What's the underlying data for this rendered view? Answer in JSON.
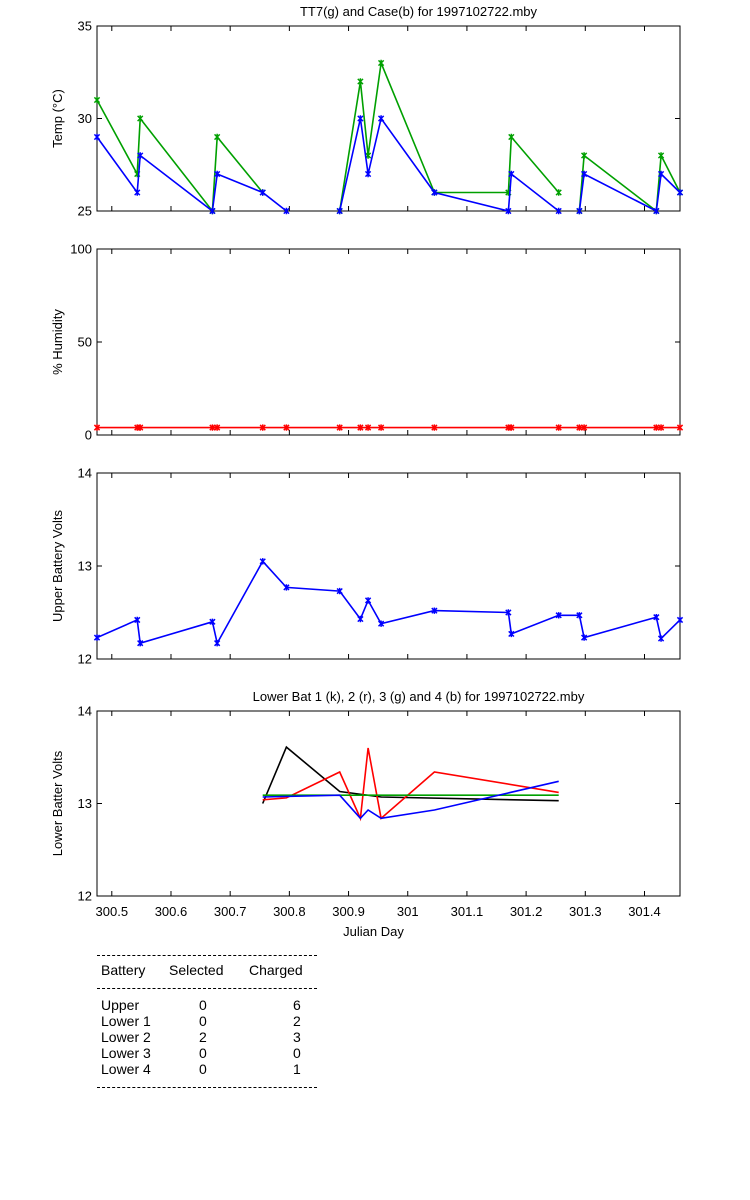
{
  "chart_data": [
    {
      "type": "line",
      "title": "TT7(g) and Case(b) for 1997102722.mby",
      "xlabel": "",
      "ylabel": "Temp  (°C)",
      "xlim": [
        300.475,
        301.46
      ],
      "ylim": [
        25,
        35
      ],
      "yticks": [
        25,
        30,
        35
      ],
      "series": [
        {
          "name": "TT7",
          "color": "#00a000",
          "segments": [
            [
              [
                300.475,
                31
              ],
              [
                300.543,
                27
              ],
              [
                300.548,
                30
              ],
              [
                300.67,
                25
              ],
              [
                300.678,
                29
              ],
              [
                300.755,
                26
              ]
            ],
            [
              [
                300.885,
                25
              ],
              [
                300.92,
                32
              ],
              [
                300.933,
                28
              ],
              [
                300.955,
                33
              ],
              [
                301.045,
                26
              ],
              [
                301.17,
                26
              ],
              [
                301.175,
                29
              ],
              [
                301.255,
                26
              ]
            ],
            [
              [
                301.29,
                25
              ],
              [
                301.298,
                28
              ],
              [
                301.42,
                25
              ],
              [
                301.428,
                28
              ],
              [
                301.46,
                26
              ]
            ]
          ]
        },
        {
          "name": "Case",
          "color": "#0000ff",
          "segments": [
            [
              [
                300.475,
                29
              ],
              [
                300.543,
                26
              ],
              [
                300.548,
                28
              ],
              [
                300.67,
                25
              ],
              [
                300.678,
                27
              ],
              [
                300.755,
                26
              ],
              [
                300.795,
                25
              ]
            ],
            [
              [
                300.885,
                25
              ],
              [
                300.92,
                30
              ],
              [
                300.933,
                27
              ],
              [
                300.955,
                30
              ],
              [
                301.045,
                26
              ],
              [
                301.17,
                25
              ],
              [
                301.175,
                27
              ],
              [
                301.255,
                25
              ]
            ],
            [
              [
                301.29,
                25
              ],
              [
                301.298,
                27
              ],
              [
                301.42,
                25
              ],
              [
                301.428,
                27
              ],
              [
                301.46,
                26
              ]
            ]
          ]
        }
      ]
    },
    {
      "type": "line",
      "title": "",
      "xlabel": "",
      "ylabel": "% Humidity",
      "xlim": [
        300.475,
        301.46
      ],
      "ylim": [
        0,
        100
      ],
      "yticks": [
        0,
        50,
        100
      ],
      "series": [
        {
          "name": "Humidity",
          "color": "#ff0000",
          "segments": [
            [
              [
                300.475,
                4
              ],
              [
                300.543,
                4
              ],
              [
                300.548,
                4
              ],
              [
                300.67,
                4
              ],
              [
                300.678,
                4
              ],
              [
                300.755,
                4
              ],
              [
                300.795,
                4
              ],
              [
                300.885,
                4
              ],
              [
                300.92,
                4
              ],
              [
                300.933,
                4
              ],
              [
                300.955,
                4
              ],
              [
                301.045,
                4
              ],
              [
                301.17,
                4
              ],
              [
                301.175,
                4
              ],
              [
                301.255,
                4
              ],
              [
                301.29,
                4
              ],
              [
                301.298,
                4
              ],
              [
                301.42,
                4
              ],
              [
                301.428,
                4
              ],
              [
                301.46,
                4
              ]
            ]
          ]
        }
      ]
    },
    {
      "type": "line",
      "title": "",
      "xlabel": "",
      "ylabel": "Upper Battery Volts",
      "xlim": [
        300.475,
        301.46
      ],
      "ylim": [
        12,
        14
      ],
      "yticks": [
        12,
        13,
        14
      ],
      "series": [
        {
          "name": "Upper",
          "color": "#0000ff",
          "segments": [
            [
              [
                300.475,
                12.23
              ],
              [
                300.543,
                12.42
              ],
              [
                300.548,
                12.17
              ],
              [
                300.67,
                12.4
              ],
              [
                300.678,
                12.17
              ],
              [
                300.755,
                13.05
              ],
              [
                300.795,
                12.77
              ],
              [
                300.885,
                12.73
              ],
              [
                300.92,
                12.43
              ],
              [
                300.933,
                12.63
              ],
              [
                300.955,
                12.38
              ],
              [
                301.045,
                12.52
              ],
              [
                301.17,
                12.5
              ],
              [
                301.175,
                12.27
              ],
              [
                301.255,
                12.47
              ],
              [
                301.29,
                12.47
              ],
              [
                301.298,
                12.23
              ],
              [
                301.42,
                12.45
              ],
              [
                301.428,
                12.22
              ],
              [
                301.46,
                12.42
              ]
            ]
          ]
        }
      ]
    },
    {
      "type": "line",
      "title": "Lower Bat 1 (k), 2 (r), 3 (g) and 4 (b) for 1997102722.mby",
      "xlabel": "Julian Day",
      "ylabel": "Lower Batter Volts",
      "xlim": [
        300.475,
        301.46
      ],
      "ylim": [
        12,
        14
      ],
      "yticks": [
        12,
        13,
        14
      ],
      "xticks": [
        300.5,
        300.6,
        300.7,
        300.8,
        300.9,
        301,
        301.1,
        301.2,
        301.3,
        301.4
      ],
      "xticklabels": [
        "300.5",
        "300.6",
        "300.7",
        "300.8",
        "300.9",
        "301",
        "301.1",
        "301.2",
        "301.3",
        "301.4"
      ],
      "series": [
        {
          "name": "Lower 1",
          "color": "#000000",
          "segments": [
            [
              [
                300.755,
                13.0
              ],
              [
                300.795,
                13.61
              ],
              [
                300.885,
                13.13
              ],
              [
                300.955,
                13.07
              ],
              [
                301.255,
                13.03
              ]
            ]
          ]
        },
        {
          "name": "Lower 2",
          "color": "#ff0000",
          "segments": [
            [
              [
                300.755,
                13.04
              ],
              [
                300.795,
                13.06
              ],
              [
                300.885,
                13.34
              ],
              [
                300.92,
                12.84
              ],
              [
                300.933,
                13.6
              ],
              [
                300.955,
                12.84
              ],
              [
                301.045,
                13.34
              ],
              [
                301.255,
                13.12
              ]
            ]
          ]
        },
        {
          "name": "Lower 3",
          "color": "#00a000",
          "segments": [
            [
              [
                300.755,
                13.09
              ],
              [
                301.255,
                13.09
              ]
            ]
          ]
        },
        {
          "name": "Lower 4",
          "color": "#0000ff",
          "segments": [
            [
              [
                300.755,
                13.07
              ],
              [
                300.885,
                13.09
              ],
              [
                300.92,
                12.84
              ],
              [
                300.933,
                12.93
              ],
              [
                300.955,
                12.84
              ],
              [
                301.045,
                12.93
              ],
              [
                301.255,
                13.24
              ]
            ]
          ]
        }
      ]
    }
  ],
  "summary": {
    "headers": [
      "Battery",
      "Selected",
      "Charged"
    ],
    "rows": [
      {
        "battery": "Upper",
        "selected": "0",
        "charged": "6"
      },
      {
        "battery": "Lower 1",
        "selected": "0",
        "charged": "2"
      },
      {
        "battery": "Lower 2",
        "selected": "2",
        "charged": "3"
      },
      {
        "battery": "Lower 3",
        "selected": "0",
        "charged": "0"
      },
      {
        "battery": "Lower 4",
        "selected": "0",
        "charged": "1"
      }
    ]
  }
}
